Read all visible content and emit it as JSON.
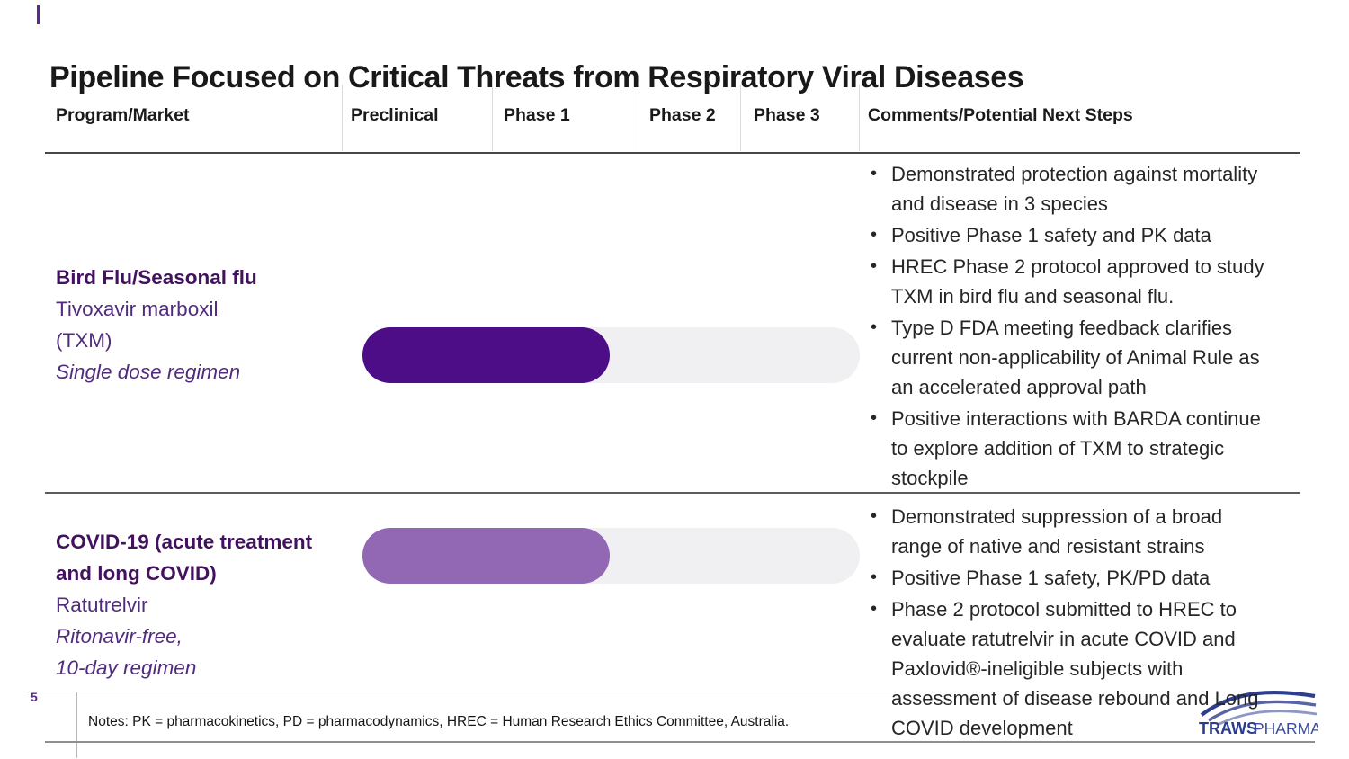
{
  "title": "Pipeline Focused on Critical Threats from Respiratory Viral Diseases",
  "accent_color": "#5b2a87",
  "table": {
    "headers": {
      "program": "Program/Market",
      "preclinical": "Preclinical",
      "phase1": "Phase 1",
      "phase2": "Phase 2",
      "phase3": "Phase 3",
      "comments": "Comments/Potential Next Steps"
    },
    "rows": [
      {
        "program": {
          "name": "Bird Flu/Seasonal flu",
          "drug": "Tivoxavir marboxil\n(TXM)",
          "regimen": "Single dose regimen"
        },
        "bar": {
          "color": "#4c0d86",
          "width_pct": 49.7,
          "progress_through": "Phase 1"
        },
        "comments": [
          "Demonstrated protection against mortality and disease in 3 species",
          "Positive Phase 1 safety and PK data",
          "HREC Phase 2 protocol approved to study TXM in bird flu and seasonal flu.",
          "Type D FDA meeting feedback clarifies current non-applicability of Animal Rule as an accelerated approval path",
          "Positive interactions with BARDA continue to explore addition of TXM to strategic stockpile"
        ]
      },
      {
        "program": {
          "name": "COVID-19 (acute treatment and long COVID)",
          "drug": "Ratutrelvir",
          "regimen": "Ritonavir-free,\n10-day regimen"
        },
        "bar": {
          "color": "#9267b4",
          "width_pct": 49.7,
          "progress_through": "Phase 1"
        },
        "comments": [
          "Demonstrated suppression of a broad range of native and resistant strains",
          "Positive Phase 1 safety, PK/PD data",
          "Phase 2 protocol submitted to HREC to evaluate ratutrelvir in acute COVID and Paxlovid®-ineligible subjects  with assessment of disease rebound and Long COVID development"
        ]
      }
    ]
  },
  "footer": {
    "page_number": "5",
    "notes": "Notes: PK = pharmacokinetics, PD = pharmacodynamics, HREC = Human Research Ethics Committee, Australia.",
    "logo": {
      "word_bold": "TRAWS",
      "word_light": "PHARMA",
      "navy": "#2e3e8e",
      "mid": "#5864a4",
      "light": "#8d97c3"
    }
  }
}
